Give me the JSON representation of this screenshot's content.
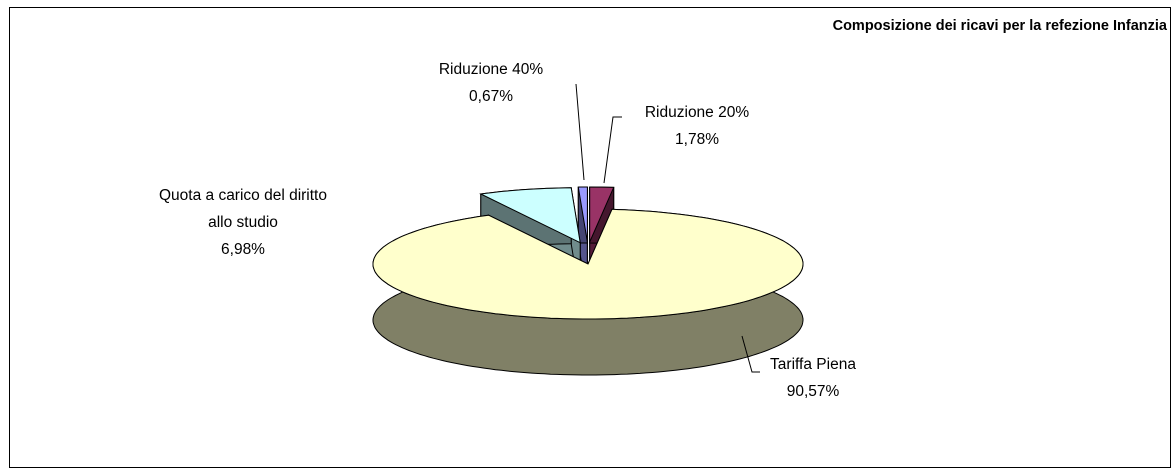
{
  "chart_data": {
    "type": "pie3d",
    "title": "Composizione dei ricavi per la refezione Infanzia",
    "categories": [
      "Tariffa Piena",
      "Quota a carico del diritto allo studio",
      "Riduzione 40%",
      "Riduzione 20%"
    ],
    "values": [
      90.57,
      6.98,
      0.67,
      1.78
    ],
    "value_labels": [
      "90,57%",
      "6,98%",
      "0,67%",
      "1,78%"
    ],
    "colors": [
      "#FFFFCC",
      "#CCFFFF",
      "#9999FF",
      "#993366"
    ]
  }
}
